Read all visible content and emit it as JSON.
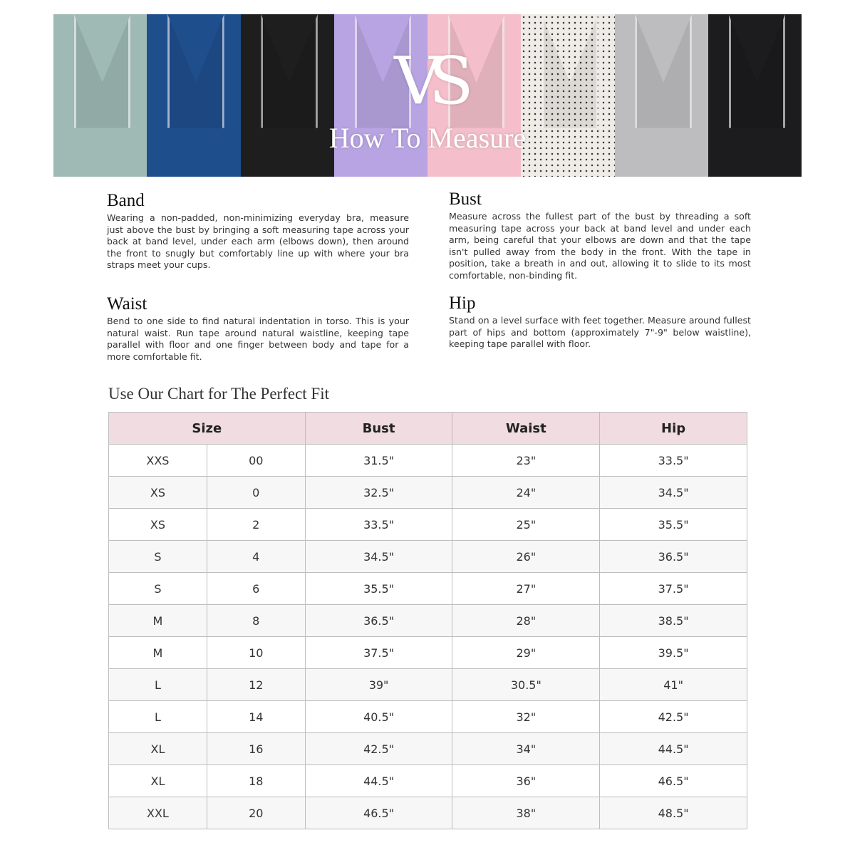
{
  "banner": {
    "logo": "VS",
    "title": "How To Measure",
    "panel_colors": [
      "#9fb9b4",
      "#1f4e8c",
      "#1e1e1e",
      "#b8a4e2",
      "#f4bfca",
      "#efebe6",
      "#bdbdbf",
      "#1c1c1e"
    ]
  },
  "sections": {
    "band": {
      "heading": "Band",
      "text": "Wearing a non-padded, non-minimizing everyday bra, measure just above the bust by bringing a soft measuring tape across your back at band level, under each arm (elbows down), then around the front to snugly but comfortably line up with where your bra straps meet your cups."
    },
    "waist": {
      "heading": "Waist",
      "text": "Bend to one side to find natural indentation in torso. This is your natural waist. Run tape around natural waistline, keeping tape parallel with floor and one finger between body and tape for a more comfortable fit."
    },
    "bust": {
      "heading": "Bust",
      "text": "Measure across the fullest part of the bust by threading a soft measuring tape across your back at band level and under each arm, being careful that your elbows are down and that the tape isn't pulled away from the body in the front. With the tape in position, take a breath in and out, allowing it to slide to its most comfortable, non-binding fit."
    },
    "hip": {
      "heading": "Hip",
      "text": "Stand on a level surface with feet together. Measure around fullest part of hips and bottom (approximately 7\"-9\" below waistline), keeping tape parallel with floor."
    }
  },
  "chart": {
    "title": "Use Our Chart for The Perfect Fit",
    "header_color": "#f0dce1",
    "headers": [
      "Size",
      "Bust",
      "Waist",
      "Hip"
    ],
    "rows": [
      [
        "XXS",
        "00",
        "31.5\"",
        "23\"",
        "33.5\""
      ],
      [
        "XS",
        "0",
        "32.5\"",
        "24\"",
        "34.5\""
      ],
      [
        "XS",
        "2",
        "33.5\"",
        "25\"",
        "35.5\""
      ],
      [
        "S",
        "4",
        "34.5\"",
        "26\"",
        "36.5\""
      ],
      [
        "S",
        "6",
        "35.5\"",
        "27\"",
        "37.5\""
      ],
      [
        "M",
        "8",
        "36.5\"",
        "28\"",
        "38.5\""
      ],
      [
        "M",
        "10",
        "37.5\"",
        "29\"",
        "39.5\""
      ],
      [
        "L",
        "12",
        "39\"",
        "30.5\"",
        "41\""
      ],
      [
        "L",
        "14",
        "40.5\"",
        "32\"",
        "42.5\""
      ],
      [
        "XL",
        "16",
        "42.5\"",
        "34\"",
        "44.5\""
      ],
      [
        "XL",
        "18",
        "44.5\"",
        "36\"",
        "46.5\""
      ],
      [
        "XXL",
        "20",
        "46.5\"",
        "38\"",
        "48.5\""
      ]
    ]
  }
}
